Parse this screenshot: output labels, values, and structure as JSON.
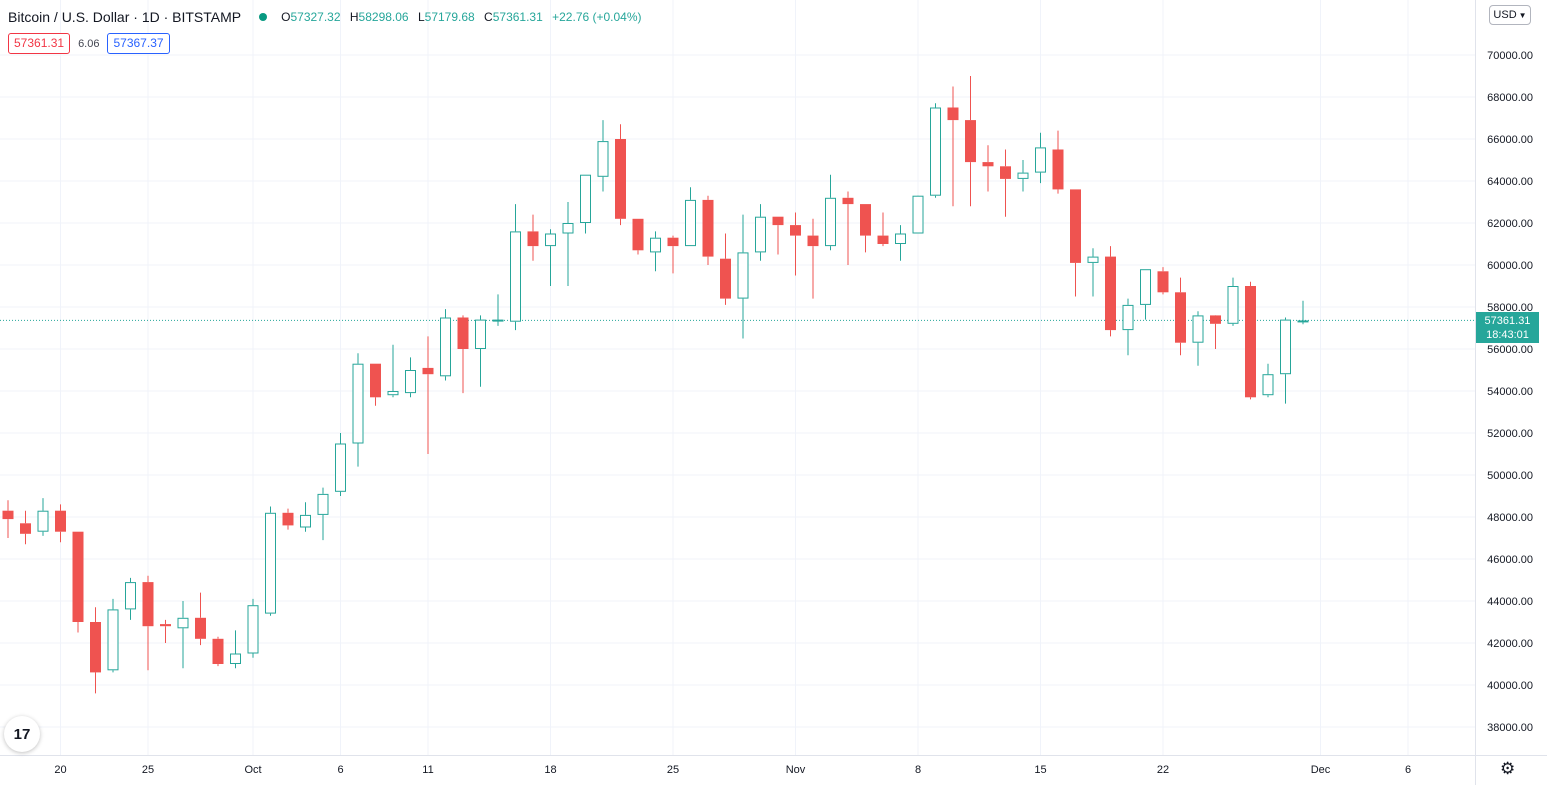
{
  "header": {
    "title": "Bitcoin / U.S. Dollar · 1D · BITSTAMP",
    "status_color": "#089981",
    "ohlc": {
      "o_label": "O",
      "o_value": "57327.32",
      "h_label": "H",
      "h_value": "58298.06",
      "l_label": "L",
      "l_value": "57179.68",
      "c_label": "C",
      "c_value": "57361.31",
      "change": "+22.76 (+0.04%)"
    },
    "bid": "57361.31",
    "spread": "6.06",
    "ask": "57367.37"
  },
  "currency_button": "USD",
  "last_price": {
    "value": "57361.31",
    "countdown": "18:43:01"
  },
  "logo_text": "17",
  "colors": {
    "up": "#26a69a",
    "down": "#ef5350",
    "grid": "#f0f3fa",
    "axis_text": "#131722",
    "bid": "#f23645",
    "ask": "#2962ff"
  },
  "chart_data": {
    "type": "candlestick",
    "title": "Bitcoin / U.S. Dollar · 1D · BITSTAMP",
    "ylim": [
      36500,
      72500
    ],
    "grid": true,
    "x_start_date": "2021-09-17",
    "x_axis_labels": [
      {
        "date": "2021-09-20",
        "label": "20"
      },
      {
        "date": "2021-09-25",
        "label": "25"
      },
      {
        "date": "2021-10-01",
        "label": "Oct"
      },
      {
        "date": "2021-10-06",
        "label": "6"
      },
      {
        "date": "2021-10-11",
        "label": "11"
      },
      {
        "date": "2021-10-18",
        "label": "18"
      },
      {
        "date": "2021-10-25",
        "label": "25"
      },
      {
        "date": "2021-11-01",
        "label": "Nov"
      },
      {
        "date": "2021-11-08",
        "label": "8"
      },
      {
        "date": "2021-11-15",
        "label": "15"
      },
      {
        "date": "2021-11-22",
        "label": "22"
      },
      {
        "date": "2021-12-01",
        "label": "Dec"
      },
      {
        "date": "2021-12-06",
        "label": "6"
      }
    ],
    "y_ticks": [
      38000,
      40000,
      42000,
      44000,
      46000,
      48000,
      50000,
      52000,
      54000,
      56000,
      58000,
      60000,
      62000,
      64000,
      66000,
      68000,
      70000
    ],
    "y_tick_labels": [
      "38000.00",
      "40000.00",
      "42000.00",
      "44000.00",
      "46000.00",
      "48000.00",
      "50000.00",
      "52000.00",
      "54000.00",
      "56000.00",
      "58000.00",
      "60000.00",
      "62000.00",
      "64000.00",
      "66000.00",
      "68000.00",
      "70000.00"
    ],
    "last_price": 57361.31,
    "candles": [
      {
        "date": "2021-09-17",
        "o": 48300,
        "h": 48800,
        "l": 47000,
        "c": 47900
      },
      {
        "date": "2021-09-18",
        "o": 47700,
        "h": 48300,
        "l": 46700,
        "c": 47200
      },
      {
        "date": "2021-09-19",
        "o": 47300,
        "h": 48900,
        "l": 47100,
        "c": 48300
      },
      {
        "date": "2021-09-20",
        "o": 48300,
        "h": 48600,
        "l": 46800,
        "c": 47300
      },
      {
        "date": "2021-09-21",
        "o": 47300,
        "h": 47300,
        "l": 42500,
        "c": 43000
      },
      {
        "date": "2021-09-22",
        "o": 43000,
        "h": 43700,
        "l": 39600,
        "c": 40600
      },
      {
        "date": "2021-09-23",
        "o": 40700,
        "h": 44100,
        "l": 40600,
        "c": 43600
      },
      {
        "date": "2021-09-24",
        "o": 43600,
        "h": 45100,
        "l": 43100,
        "c": 44900
      },
      {
        "date": "2021-09-25",
        "o": 44900,
        "h": 45200,
        "l": 40700,
        "c": 42800
      },
      {
        "date": "2021-09-26",
        "o": 42900,
        "h": 43100,
        "l": 42000,
        "c": 42800
      },
      {
        "date": "2021-09-27",
        "o": 42700,
        "h": 44000,
        "l": 40800,
        "c": 43200
      },
      {
        "date": "2021-09-28",
        "o": 43200,
        "h": 44400,
        "l": 41900,
        "c": 42200
      },
      {
        "date": "2021-09-29",
        "o": 42200,
        "h": 42300,
        "l": 40900,
        "c": 41000
      },
      {
        "date": "2021-09-30",
        "o": 41000,
        "h": 42600,
        "l": 40800,
        "c": 41500
      },
      {
        "date": "2021-10-01",
        "o": 41500,
        "h": 44100,
        "l": 41300,
        "c": 43800
      },
      {
        "date": "2021-10-02",
        "o": 43400,
        "h": 48500,
        "l": 43300,
        "c": 48200
      },
      {
        "date": "2021-10-03",
        "o": 48200,
        "h": 48400,
        "l": 47400,
        "c": 47600
      },
      {
        "date": "2021-10-04",
        "o": 47500,
        "h": 48700,
        "l": 47300,
        "c": 48100
      },
      {
        "date": "2021-10-05",
        "o": 48100,
        "h": 49400,
        "l": 46900,
        "c": 49100
      },
      {
        "date": "2021-10-06",
        "o": 49200,
        "h": 52000,
        "l": 49000,
        "c": 51500
      },
      {
        "date": "2021-10-07",
        "o": 51500,
        "h": 55800,
        "l": 50400,
        "c": 55300
      },
      {
        "date": "2021-10-08",
        "o": 55300,
        "h": 55300,
        "l": 53300,
        "c": 53700
      },
      {
        "date": "2021-10-09",
        "o": 53800,
        "h": 56200,
        "l": 53700,
        "c": 54000
      },
      {
        "date": "2021-10-10",
        "o": 53900,
        "h": 55600,
        "l": 53700,
        "c": 55000
      },
      {
        "date": "2021-10-11",
        "o": 55100,
        "h": 56600,
        "l": 51000,
        "c": 54800
      },
      {
        "date": "2021-10-12",
        "o": 54700,
        "h": 57900,
        "l": 54500,
        "c": 57500
      },
      {
        "date": "2021-10-13",
        "o": 57500,
        "h": 57600,
        "l": 53900,
        "c": 56000
      },
      {
        "date": "2021-10-14",
        "o": 56000,
        "h": 57600,
        "l": 54200,
        "c": 57400
      },
      {
        "date": "2021-10-15",
        "o": 57400,
        "h": 58600,
        "l": 57100,
        "c": 57400
      },
      {
        "date": "2021-10-16",
        "o": 57300,
        "h": 62900,
        "l": 56900,
        "c": 61600
      },
      {
        "date": "2021-10-17",
        "o": 61600,
        "h": 62400,
        "l": 60200,
        "c": 60900
      },
      {
        "date": "2021-10-18",
        "o": 60900,
        "h": 61700,
        "l": 59000,
        "c": 61500
      },
      {
        "date": "2021-10-19",
        "o": 61500,
        "h": 63000,
        "l": 59000,
        "c": 62000
      },
      {
        "date": "2021-10-20",
        "o": 62000,
        "h": 64300,
        "l": 61500,
        "c": 64300
      },
      {
        "date": "2021-10-21",
        "o": 64200,
        "h": 66900,
        "l": 63500,
        "c": 65900
      },
      {
        "date": "2021-10-22",
        "o": 66000,
        "h": 66700,
        "l": 61900,
        "c": 62200
      },
      {
        "date": "2021-10-23",
        "o": 62200,
        "h": 62200,
        "l": 60500,
        "c": 60700
      },
      {
        "date": "2021-10-24",
        "o": 60600,
        "h": 61600,
        "l": 59700,
        "c": 61300
      },
      {
        "date": "2021-10-25",
        "o": 61300,
        "h": 61400,
        "l": 59600,
        "c": 60900
      },
      {
        "date": "2021-10-26",
        "o": 60900,
        "h": 63700,
        "l": 60900,
        "c": 63100
      },
      {
        "date": "2021-10-27",
        "o": 63100,
        "h": 63300,
        "l": 60000,
        "c": 60400
      },
      {
        "date": "2021-10-28",
        "o": 60300,
        "h": 61500,
        "l": 58100,
        "c": 58400
      },
      {
        "date": "2021-10-29",
        "o": 58400,
        "h": 62400,
        "l": 56500,
        "c": 60600
      },
      {
        "date": "2021-10-30",
        "o": 60600,
        "h": 62900,
        "l": 60200,
        "c": 62300
      },
      {
        "date": "2021-10-31",
        "o": 62300,
        "h": 62300,
        "l": 60500,
        "c": 61900
      },
      {
        "date": "2021-11-01",
        "o": 61900,
        "h": 62500,
        "l": 59500,
        "c": 61400
      },
      {
        "date": "2021-11-02",
        "o": 61400,
        "h": 62200,
        "l": 58400,
        "c": 60900
      },
      {
        "date": "2021-11-03",
        "o": 60900,
        "h": 64300,
        "l": 60700,
        "c": 63200
      },
      {
        "date": "2021-11-04",
        "o": 63200,
        "h": 63500,
        "l": 60000,
        "c": 62900
      },
      {
        "date": "2021-11-05",
        "o": 62900,
        "h": 62900,
        "l": 60600,
        "c": 61400
      },
      {
        "date": "2021-11-06",
        "o": 61400,
        "h": 62500,
        "l": 60900,
        "c": 61000
      },
      {
        "date": "2021-11-07",
        "o": 61000,
        "h": 61900,
        "l": 60200,
        "c": 61500
      },
      {
        "date": "2021-11-08",
        "o": 61500,
        "h": 63100,
        "l": 61500,
        "c": 63300
      },
      {
        "date": "2021-11-09",
        "o": 63300,
        "h": 67700,
        "l": 63200,
        "c": 67500
      },
      {
        "date": "2021-11-10",
        "o": 67500,
        "h": 68500,
        "l": 62800,
        "c": 66900
      },
      {
        "date": "2021-11-11",
        "o": 66900,
        "h": 69000,
        "l": 62800,
        "c": 64900
      },
      {
        "date": "2021-11-12",
        "o": 64900,
        "h": 65700,
        "l": 63500,
        "c": 64700
      },
      {
        "date": "2021-11-13",
        "o": 64700,
        "h": 65500,
        "l": 62300,
        "c": 64100
      },
      {
        "date": "2021-11-14",
        "o": 64100,
        "h": 65000,
        "l": 63500,
        "c": 64400
      },
      {
        "date": "2021-11-15",
        "o": 64400,
        "h": 66300,
        "l": 63900,
        "c": 65600
      },
      {
        "date": "2021-11-16",
        "o": 65500,
        "h": 66400,
        "l": 63400,
        "c": 63600
      },
      {
        "date": "2021-11-17",
        "o": 63600,
        "h": 63600,
        "l": 58500,
        "c": 60100
      },
      {
        "date": "2021-11-18",
        "o": 60100,
        "h": 60800,
        "l": 58500,
        "c": 60400
      },
      {
        "date": "2021-11-19",
        "o": 60400,
        "h": 60900,
        "l": 56600,
        "c": 56900
      },
      {
        "date": "2021-11-20",
        "o": 56900,
        "h": 58400,
        "l": 55700,
        "c": 58100
      },
      {
        "date": "2021-11-21",
        "o": 58100,
        "h": 59800,
        "l": 57400,
        "c": 59800
      },
      {
        "date": "2021-11-22",
        "o": 59700,
        "h": 59900,
        "l": 58600,
        "c": 58700
      },
      {
        "date": "2021-11-23",
        "o": 58700,
        "h": 59400,
        "l": 55700,
        "c": 56300
      },
      {
        "date": "2021-11-24",
        "o": 56300,
        "h": 57800,
        "l": 55200,
        "c": 57600
      },
      {
        "date": "2021-11-25",
        "o": 57600,
        "h": 57500,
        "l": 56000,
        "c": 57200
      },
      {
        "date": "2021-11-26",
        "o": 57200,
        "h": 59400,
        "l": 57100,
        "c": 59000
      },
      {
        "date": "2021-11-27",
        "o": 59000,
        "h": 59200,
        "l": 53600,
        "c": 53700
      },
      {
        "date": "2021-11-28",
        "o": 53800,
        "h": 55300,
        "l": 53700,
        "c": 54800
      },
      {
        "date": "2021-11-29",
        "o": 54800,
        "h": 57500,
        "l": 53400,
        "c": 57400
      },
      {
        "date": "2021-11-30",
        "o": 57327.32,
        "h": 58298.06,
        "l": 57179.68,
        "c": 57361.31
      }
    ]
  }
}
